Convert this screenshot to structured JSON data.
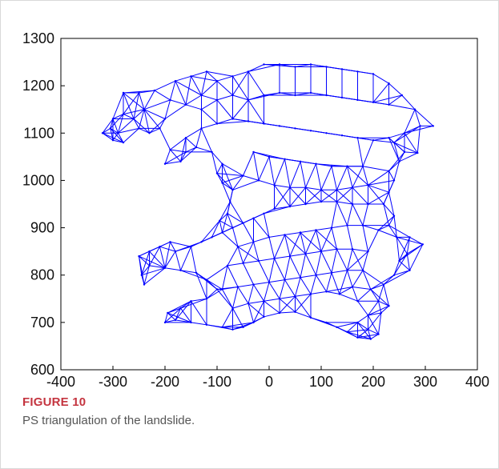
{
  "figure": {
    "label": "FIGURE 10",
    "caption": "PS triangulation of the landslide."
  },
  "colors": {
    "mesh": "#0000ff",
    "axis": "#000000",
    "caption_label": "#c4343f",
    "caption_text": "#555555"
  },
  "chart_data": {
    "type": "scatter",
    "title": "",
    "xlabel": "",
    "ylabel": "",
    "xlim": [
      -400,
      400
    ],
    "ylim": [
      600,
      1300
    ],
    "xticks": [
      -400,
      -300,
      -200,
      -100,
      0,
      100,
      200,
      300,
      400
    ],
    "yticks": [
      600,
      700,
      800,
      900,
      1000,
      1100,
      1200,
      1300
    ],
    "grid": false,
    "series": [
      {
        "style": "triangulated mesh",
        "points": [
          [
            -320,
            1100
          ],
          [
            -305,
            1110
          ],
          [
            -290,
            1100
          ],
          [
            -280,
            1080
          ],
          [
            -300,
            1085
          ],
          [
            -300,
            1130
          ],
          [
            -280,
            1140
          ],
          [
            -260,
            1130
          ],
          [
            -250,
            1110
          ],
          [
            -230,
            1100
          ],
          [
            -210,
            1110
          ],
          [
            -200,
            1130
          ],
          [
            -240,
            1150
          ],
          [
            -280,
            1185
          ],
          [
            -250,
            1185
          ],
          [
            -220,
            1190
          ],
          [
            -190,
            1170
          ],
          [
            -160,
            1160
          ],
          [
            -130,
            1180
          ],
          [
            -180,
            1210
          ],
          [
            -150,
            1220
          ],
          [
            -120,
            1230
          ],
          [
            -100,
            1210
          ],
          [
            -70,
            1220
          ],
          [
            -40,
            1230
          ],
          [
            -10,
            1245
          ],
          [
            20,
            1245
          ],
          [
            50,
            1240
          ],
          [
            80,
            1245
          ],
          [
            110,
            1240
          ],
          [
            140,
            1235
          ],
          [
            170,
            1230
          ],
          [
            200,
            1225
          ],
          [
            230,
            1205
          ],
          [
            255,
            1180
          ],
          [
            280,
            1150
          ],
          [
            315,
            1115
          ],
          [
            290,
            1115
          ],
          [
            260,
            1100
          ],
          [
            240,
            1080
          ],
          [
            260,
            1060
          ],
          [
            285,
            1058
          ],
          [
            250,
            1040
          ],
          [
            230,
            1020
          ],
          [
            240,
            1000
          ],
          [
            230,
            975
          ],
          [
            220,
            950
          ],
          [
            240,
            925
          ],
          [
            230,
            905
          ],
          [
            245,
            880
          ],
          [
            270,
            880
          ],
          [
            295,
            865
          ],
          [
            265,
            845
          ],
          [
            250,
            830
          ],
          [
            270,
            810
          ],
          [
            240,
            800
          ],
          [
            220,
            780
          ],
          [
            195,
            770
          ],
          [
            160,
            775
          ],
          [
            135,
            760
          ],
          [
            170,
            745
          ],
          [
            210,
            745
          ],
          [
            230,
            735
          ],
          [
            215,
            720
          ],
          [
            190,
            715
          ],
          [
            170,
            700
          ],
          [
            190,
            685
          ],
          [
            210,
            675
          ],
          [
            195,
            665
          ],
          [
            170,
            668
          ],
          [
            150,
            680
          ],
          [
            130,
            690
          ],
          [
            110,
            700
          ],
          [
            80,
            710
          ],
          [
            50,
            722
          ],
          [
            20,
            720
          ],
          [
            -10,
            712
          ],
          [
            -30,
            700
          ],
          [
            -50,
            690
          ],
          [
            -70,
            685
          ],
          [
            -90,
            690
          ],
          [
            -120,
            695
          ],
          [
            -150,
            700
          ],
          [
            -180,
            705
          ],
          [
            -200,
            700
          ],
          [
            -195,
            720
          ],
          [
            -170,
            730
          ],
          [
            -150,
            745
          ],
          [
            -120,
            750
          ],
          [
            -100,
            770
          ],
          [
            -120,
            790
          ],
          [
            -140,
            805
          ],
          [
            -170,
            810
          ],
          [
            -200,
            815
          ],
          [
            -230,
            820
          ],
          [
            -245,
            800
          ],
          [
            -240,
            780
          ],
          [
            -250,
            840
          ],
          [
            -230,
            850
          ],
          [
            -210,
            860
          ],
          [
            -190,
            870
          ],
          [
            -180,
            850
          ],
          [
            -150,
            860
          ],
          [
            -130,
            870
          ],
          [
            -110,
            880
          ],
          [
            -90,
            890
          ],
          [
            -70,
            900
          ],
          [
            -50,
            910
          ],
          [
            -30,
            920
          ],
          [
            -10,
            930
          ],
          [
            10,
            940
          ],
          [
            40,
            945
          ],
          [
            70,
            950
          ],
          [
            100,
            955
          ],
          [
            130,
            955
          ],
          [
            160,
            950
          ],
          [
            190,
            950
          ],
          [
            -95,
            915
          ],
          [
            -80,
            930
          ],
          [
            -75,
            955
          ],
          [
            -70,
            980
          ],
          [
            -90,
            995
          ],
          [
            -100,
            1015
          ],
          [
            -90,
            1035
          ],
          [
            -110,
            1060
          ],
          [
            -140,
            1070
          ],
          [
            -160,
            1060
          ],
          [
            -170,
            1040
          ],
          [
            -200,
            1035
          ],
          [
            -190,
            1065
          ],
          [
            -160,
            1090
          ],
          [
            -130,
            1110
          ],
          [
            -100,
            1120
          ],
          [
            -70,
            1130
          ],
          [
            -40,
            1125
          ],
          [
            -10,
            1120
          ],
          [
            20,
            1115
          ],
          [
            50,
            1110
          ],
          [
            80,
            1105
          ],
          [
            110,
            1100
          ],
          [
            140,
            1095
          ],
          [
            170,
            1090
          ],
          [
            200,
            1085
          ],
          [
            230,
            1090
          ],
          [
            -30,
            1060
          ],
          [
            0,
            1050
          ],
          [
            30,
            1045
          ],
          [
            60,
            1040
          ],
          [
            90,
            1035
          ],
          [
            120,
            1030
          ],
          [
            150,
            1030
          ],
          [
            180,
            1030
          ],
          [
            -50,
            1010
          ],
          [
            -20,
            1000
          ],
          [
            10,
            990
          ],
          [
            40,
            985
          ],
          [
            70,
            985
          ],
          [
            100,
            980
          ],
          [
            130,
            980
          ],
          [
            160,
            985
          ],
          [
            190,
            990
          ],
          [
            -40,
            1170
          ],
          [
            -10,
            1180
          ],
          [
            20,
            1185
          ],
          [
            50,
            1180
          ],
          [
            80,
            1185
          ],
          [
            110,
            1180
          ],
          [
            140,
            1175
          ],
          [
            170,
            1170
          ],
          [
            200,
            1165
          ],
          [
            230,
            1160
          ],
          [
            -70,
            1180
          ],
          [
            -100,
            1170
          ],
          [
            -130,
            1150
          ],
          [
            -60,
            860
          ],
          [
            -30,
            870
          ],
          [
            0,
            880
          ],
          [
            30,
            885
          ],
          [
            60,
            890
          ],
          [
            90,
            895
          ],
          [
            120,
            900
          ],
          [
            150,
            905
          ],
          [
            180,
            905
          ],
          [
            210,
            895
          ],
          [
            -80,
            820
          ],
          [
            -50,
            825
          ],
          [
            -20,
            830
          ],
          [
            10,
            835
          ],
          [
            40,
            840
          ],
          [
            70,
            845
          ],
          [
            100,
            850
          ],
          [
            130,
            855
          ],
          [
            160,
            855
          ],
          [
            190,
            850
          ],
          [
            -90,
            770
          ],
          [
            -60,
            775
          ],
          [
            -30,
            780
          ],
          [
            0,
            785
          ],
          [
            30,
            790
          ],
          [
            60,
            795
          ],
          [
            90,
            800
          ],
          [
            120,
            805
          ],
          [
            150,
            810
          ],
          [
            180,
            810
          ],
          [
            -70,
            730
          ],
          [
            -40,
            740
          ],
          [
            -10,
            745
          ],
          [
            20,
            750
          ],
          [
            50,
            755
          ],
          [
            80,
            760
          ],
          [
            110,
            765
          ]
        ]
      }
    ]
  }
}
